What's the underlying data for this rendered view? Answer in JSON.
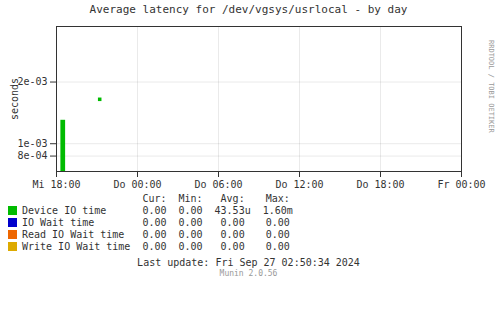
{
  "chart_data": {
    "type": "bar",
    "title": "Average latency for /dev/vgsys/usrlocal - by day",
    "ylabel": "seconds",
    "xlim": [
      0,
      30
    ],
    "xticks": [
      {
        "value": 0,
        "label": "Mi 18:00"
      },
      {
        "value": 6,
        "label": "Do 00:00"
      },
      {
        "value": 12,
        "label": "Do 06:00"
      },
      {
        "value": 18,
        "label": "Do 12:00"
      },
      {
        "value": 24,
        "label": "Do 18:00"
      },
      {
        "value": 30,
        "label": "Fr 00:00"
      }
    ],
    "ylim": [
      0.00055,
      0.0029
    ],
    "yticks": [
      {
        "value": 0.0008,
        "label": "8e-04"
      },
      {
        "value": 0.001,
        "label": "1e-03"
      },
      {
        "value": 0.002,
        "label": "2e-03"
      }
    ],
    "grid": true,
    "table_headers": [
      "Cur:",
      "Min:",
      "Avg:",
      "Max:"
    ],
    "series": [
      {
        "name": "Device IO time",
        "color": "#00bb00",
        "type": "bar",
        "x": [
          0.5
        ],
        "values": [
          0.00138
        ],
        "markers": {
          "x": [
            3.2
          ],
          "values": [
            0.00172
          ]
        },
        "stats": [
          "0.00",
          "0.00",
          "43.53u",
          "1.60m"
        ]
      },
      {
        "name": "IO Wait time",
        "color": "#0000cc",
        "type": "bar",
        "x": [],
        "values": [],
        "stats": [
          "0.00",
          "0.00",
          "0.00",
          "0.00"
        ]
      },
      {
        "name": "Read IO Wait time",
        "color": "#ee6600",
        "type": "bar",
        "x": [],
        "values": [],
        "stats": [
          "0.00",
          "0.00",
          "0.00",
          "0.00"
        ]
      },
      {
        "name": "Write IO Wait time",
        "color": "#ddaa00",
        "type": "bar",
        "x": [],
        "values": [],
        "stats": [
          "0.00",
          "0.00",
          "0.00",
          "0.00"
        ]
      }
    ],
    "annotations": [
      "RRDTOOL / TOBI OETIKER",
      "Last update: Fri Sep 27 02:50:34 2024",
      "Munin 2.0.56"
    ]
  }
}
